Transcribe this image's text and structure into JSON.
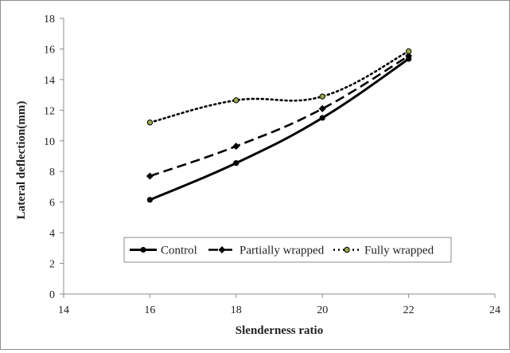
{
  "chart_data": {
    "type": "line",
    "title": "",
    "xlabel": "Slenderness ratio",
    "ylabel": "Lateral deflection(mm)",
    "xlim": [
      14,
      24
    ],
    "ylim": [
      0,
      18
    ],
    "x_ticks": [
      "14",
      "16",
      "18",
      "20",
      "22",
      "24"
    ],
    "y_ticks": [
      "0",
      "2",
      "4",
      "6",
      "8",
      "10",
      "12",
      "14",
      "16",
      "18"
    ],
    "x": [
      16,
      18,
      20,
      22
    ],
    "grid": false,
    "legend_position": "bottom-right (inside plot)",
    "series": [
      {
        "name": "Control",
        "values": [
          6.15,
          8.55,
          11.5,
          15.35
        ],
        "line_style": "solid",
        "marker": "circle",
        "color": "#000000"
      },
      {
        "name": "Partially wrapped",
        "values": [
          7.7,
          9.65,
          12.1,
          15.55
        ],
        "line_style": "dashed",
        "marker": "diamond",
        "color": "#000000"
      },
      {
        "name": "Fully wrapped",
        "values": [
          11.2,
          12.65,
          12.9,
          15.85
        ],
        "line_style": "dotted",
        "marker": "circle-olive",
        "color": "#000000",
        "marker_fill": "#9aa84a"
      }
    ]
  }
}
